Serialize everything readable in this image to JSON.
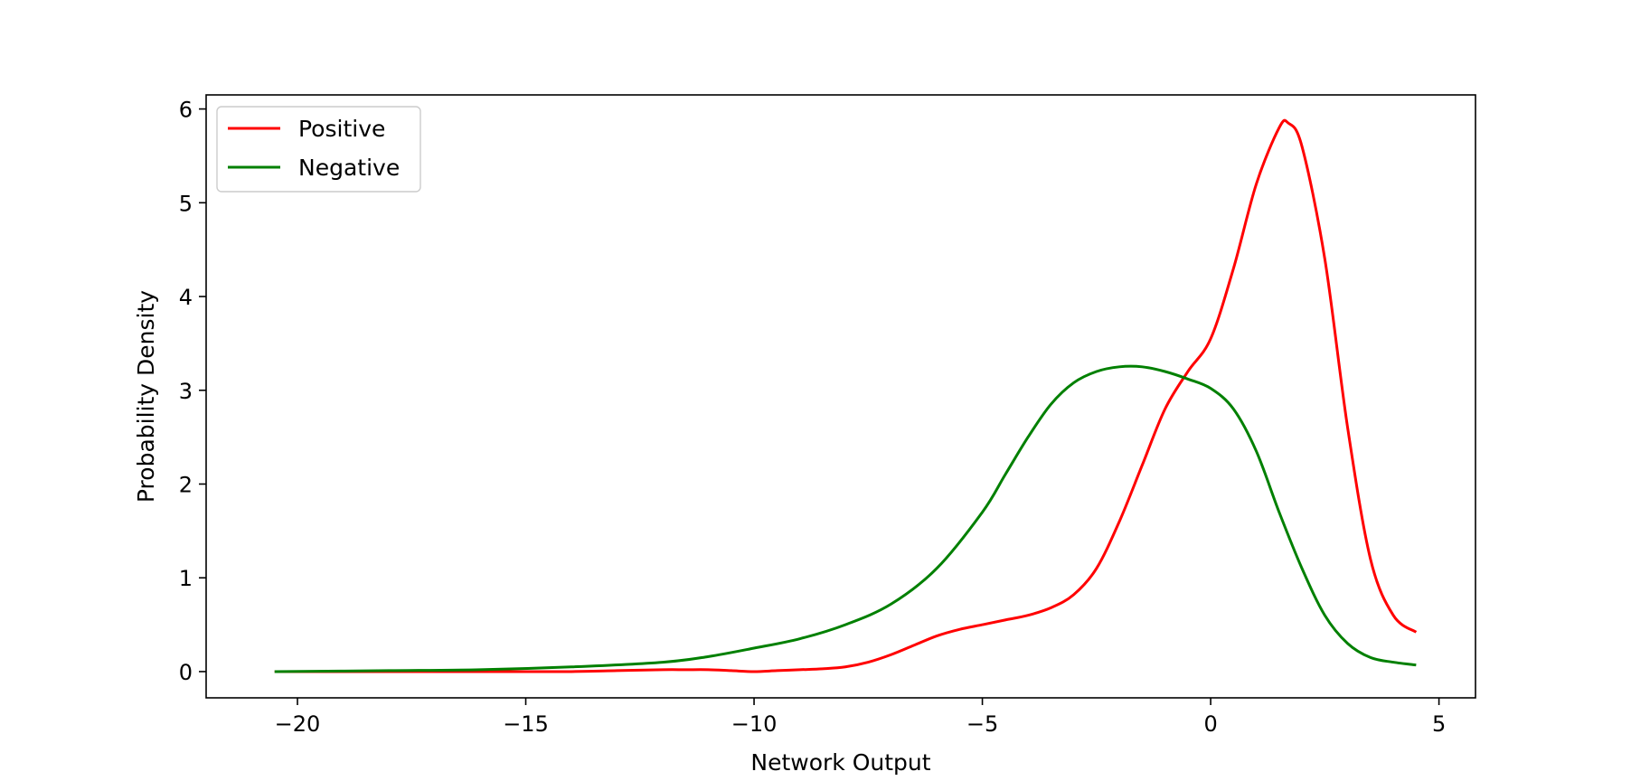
{
  "chart_data": {
    "type": "line",
    "title": "",
    "xlabel": "Network Output",
    "ylabel": "Probability Density",
    "xlim": [
      -22.0,
      5.8
    ],
    "ylim": [
      -0.28,
      6.15
    ],
    "xticks": [
      -20,
      -15,
      -10,
      -5,
      0,
      5
    ],
    "xtick_labels": [
      "−20",
      "−15",
      "−10",
      "−5",
      "0",
      "5"
    ],
    "yticks": [
      0,
      1,
      2,
      3,
      4,
      5,
      6
    ],
    "ytick_labels": [
      "0",
      "1",
      "2",
      "3",
      "4",
      "5",
      "6"
    ],
    "grid": false,
    "legend_position": "upper-left",
    "series": [
      {
        "name": "Positive",
        "color": "#ff0000",
        "x": [
          -20.5,
          -18,
          -16,
          -14,
          -13,
          -12,
          -11.5,
          -11,
          -10.5,
          -10,
          -9.5,
          -9,
          -8.5,
          -8,
          -7.5,
          -7,
          -6.5,
          -6,
          -5.5,
          -5,
          -4.5,
          -4,
          -3.5,
          -3,
          -2.5,
          -2,
          -1.5,
          -1,
          -0.5,
          0,
          0.5,
          1,
          1.5,
          1.7,
          2,
          2.5,
          3,
          3.5,
          4,
          4.5
        ],
        "y": [
          0.0,
          0.0,
          0.0,
          0.0,
          0.01,
          0.02,
          0.02,
          0.02,
          0.01,
          0.0,
          0.01,
          0.02,
          0.03,
          0.05,
          0.1,
          0.18,
          0.28,
          0.38,
          0.45,
          0.5,
          0.55,
          0.6,
          0.68,
          0.82,
          1.1,
          1.6,
          2.2,
          2.8,
          3.2,
          3.55,
          4.3,
          5.2,
          5.8,
          5.85,
          5.6,
          4.4,
          2.6,
          1.2,
          0.6,
          0.42
        ]
      },
      {
        "name": "Negative",
        "color": "#008000",
        "x": [
          -20.5,
          -18,
          -16,
          -14,
          -12,
          -11,
          -10,
          -9,
          -8,
          -7,
          -6,
          -5,
          -4.5,
          -4,
          -3.5,
          -3,
          -2.5,
          -2,
          -1.5,
          -1,
          -0.5,
          0,
          0.5,
          1,
          1.5,
          2,
          2.5,
          3,
          3.5,
          4,
          4.5
        ],
        "y": [
          0.0,
          0.01,
          0.02,
          0.05,
          0.1,
          0.16,
          0.25,
          0.35,
          0.5,
          0.72,
          1.1,
          1.7,
          2.1,
          2.5,
          2.85,
          3.08,
          3.2,
          3.25,
          3.25,
          3.2,
          3.12,
          3.02,
          2.8,
          2.35,
          1.7,
          1.1,
          0.6,
          0.3,
          0.15,
          0.1,
          0.07
        ]
      }
    ]
  }
}
